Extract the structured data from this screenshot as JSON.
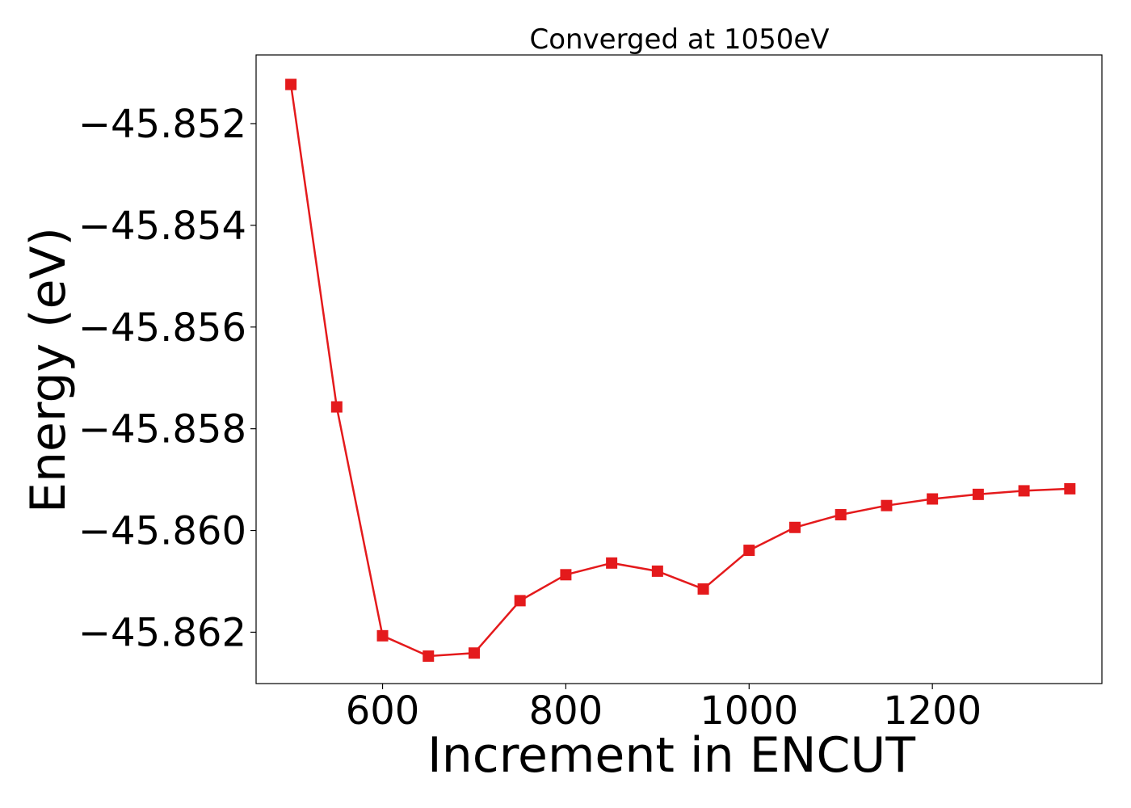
{
  "chart_data": {
    "type": "line",
    "title": "Converged at 1050eV",
    "xlabel": "Increment in ENCUT",
    "ylabel": "Energy (eV)",
    "xlim": [
      462,
      1385
    ],
    "ylim": [
      -45.86301,
      -45.85065
    ],
    "xticks": [
      600,
      800,
      1000,
      1200
    ],
    "xtick_labels": [
      "600",
      "800",
      "1000",
      "1200"
    ],
    "yticks": [
      -45.852,
      -45.854,
      -45.856,
      -45.858,
      -45.86,
      -45.862
    ],
    "ytick_labels": [
      "−45.852",
      "−45.854",
      "−45.856",
      "−45.858",
      "−45.860",
      "−45.862"
    ],
    "grid": false,
    "series": [
      {
        "color": "#e41a1c",
        "marker": "square",
        "x": [
          500,
          550,
          600,
          650,
          700,
          750,
          800,
          850,
          900,
          950,
          1000,
          1050,
          1100,
          1150,
          1200,
          1250,
          1300,
          1350
        ],
        "y": [
          -45.85123,
          -45.85757,
          -45.86207,
          -45.86247,
          -45.86241,
          -45.86138,
          -45.86087,
          -45.86064,
          -45.8608,
          -45.86115,
          -45.86039,
          -45.85994,
          -45.85969,
          -45.85951,
          -45.85938,
          -45.85929,
          -45.85922,
          -45.85918
        ]
      }
    ]
  }
}
